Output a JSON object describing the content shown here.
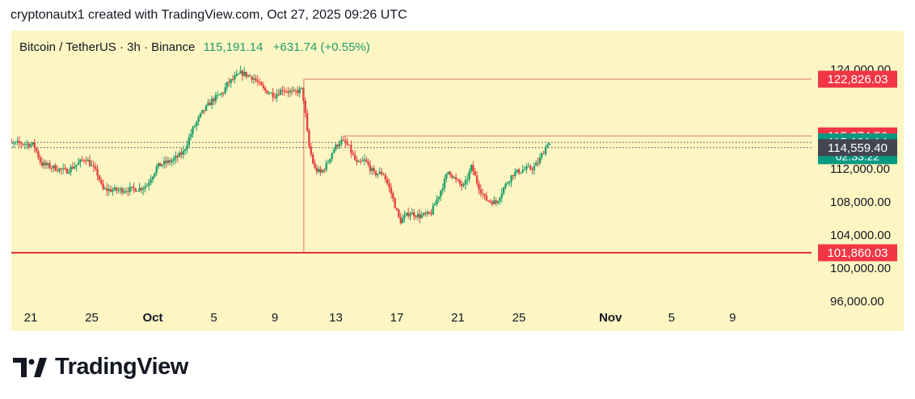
{
  "header": {
    "attribution": "cryptonautx1 created with TradingView.com, Oct 27, 2025 09:26 UTC"
  },
  "legend": {
    "symbol": "Bitcoin / TetherUS · 3h · Binance",
    "last": "115,191.14",
    "change": "+631.74 (+0.55%)"
  },
  "footer": {
    "brand": "TradingView"
  },
  "colors": {
    "bg": "#fdf6c3",
    "up": "#22a06b",
    "down": "#e5433f",
    "line": "#e0716f",
    "support": "#d9302f"
  },
  "chart_data": {
    "type": "candlestick",
    "symbol": "Bitcoin / TetherUS",
    "interval": "3h",
    "exchange": "Binance",
    "y_range": [
      93000,
      126500
    ],
    "y_ticks": [
      {
        "value": 124000,
        "label": "124,000.00"
      },
      {
        "value": 112000,
        "label": "112,000.00"
      },
      {
        "value": 108000,
        "label": "108,000.00"
      },
      {
        "value": 104000,
        "label": "104,000.00"
      },
      {
        "value": 100000,
        "label": "100,000.00"
      },
      {
        "value": 96000,
        "label": "96,000.00"
      }
    ],
    "x_ticks": [
      {
        "day": 21,
        "label": "21",
        "bold": false
      },
      {
        "day": 25,
        "label": "25",
        "bold": false
      },
      {
        "day": 29,
        "label": "Oct",
        "bold": true
      },
      {
        "day": 33,
        "label": "5",
        "bold": false
      },
      {
        "day": 37,
        "label": "9",
        "bold": false
      },
      {
        "day": 41,
        "label": "13",
        "bold": false
      },
      {
        "day": 45,
        "label": "17",
        "bold": false
      },
      {
        "day": 49,
        "label": "21",
        "bold": false
      },
      {
        "day": 53,
        "label": "25",
        "bold": false
      },
      {
        "day": 59,
        "label": "Nov",
        "bold": true
      },
      {
        "day": 63,
        "label": "5",
        "bold": false
      },
      {
        "day": 67,
        "label": "9",
        "bold": false
      }
    ],
    "price_labels": [
      {
        "value": 122826.03,
        "text": "122,826.03",
        "color": "#f23645"
      },
      {
        "value": 115974.56,
        "text": "115,974.56",
        "color": "#f23645"
      },
      {
        "value": 115191.14,
        "text": "115,191.14",
        "sub": "02:33:22",
        "color": "#089981"
      },
      {
        "value": 114559.4,
        "text": "114,559.40",
        "color": "#434651"
      },
      {
        "value": 101860.03,
        "text": "101,860.03",
        "color": "#f23645"
      }
    ],
    "levels": [
      {
        "value": 101860.03,
        "kind": "support"
      },
      {
        "value": 115974.56,
        "kind": "resistance"
      },
      {
        "value": 122826.03,
        "kind": "resistance"
      }
    ],
    "dotted_levels": [
      115191.14,
      114559.4
    ],
    "vertical_marker": {
      "day": 38.9,
      "from": 122826.03,
      "to": 101860.03
    },
    "anchors": [
      [
        19.0,
        114800
      ],
      [
        20.3,
        115100
      ],
      [
        21.2,
        114900
      ],
      [
        21.7,
        112600
      ],
      [
        22.6,
        112100
      ],
      [
        23.3,
        111700
      ],
      [
        24.0,
        112500
      ],
      [
        24.6,
        113300
      ],
      [
        25.4,
        111300
      ],
      [
        25.7,
        109500
      ],
      [
        26.6,
        109400
      ],
      [
        28.1,
        109600
      ],
      [
        28.6,
        110000
      ],
      [
        29.3,
        112300
      ],
      [
        29.8,
        112700
      ],
      [
        30.3,
        113000
      ],
      [
        31.0,
        114000
      ],
      [
        31.6,
        116700
      ],
      [
        32.2,
        118700
      ],
      [
        32.9,
        120300
      ],
      [
        33.6,
        121200
      ],
      [
        33.9,
        122300
      ],
      [
        34.4,
        123000
      ],
      [
        34.8,
        123600
      ],
      [
        35.6,
        123000
      ],
      [
        36.3,
        121500
      ],
      [
        37.0,
        120900
      ],
      [
        37.5,
        121600
      ],
      [
        38.0,
        121300
      ],
      [
        38.2,
        121100
      ],
      [
        38.5,
        121400
      ],
      [
        38.8,
        121600
      ],
      [
        39.0,
        118500
      ],
      [
        39.2,
        115000
      ],
      [
        39.6,
        112000
      ],
      [
        40.0,
        111500
      ],
      [
        40.4,
        112500
      ],
      [
        40.8,
        114200
      ],
      [
        41.3,
        115400
      ],
      [
        41.8,
        114800
      ],
      [
        42.4,
        112500
      ],
      [
        42.9,
        113000
      ],
      [
        43.5,
        111400
      ],
      [
        44.1,
        111500
      ],
      [
        44.6,
        109200
      ],
      [
        45.2,
        105600
      ],
      [
        45.8,
        106700
      ],
      [
        46.5,
        106300
      ],
      [
        47.2,
        106500
      ],
      [
        47.7,
        108600
      ],
      [
        48.4,
        111800
      ],
      [
        48.9,
        110500
      ],
      [
        49.4,
        109800
      ],
      [
        49.9,
        112300
      ],
      [
        50.3,
        110100
      ],
      [
        50.8,
        108300
      ],
      [
        51.5,
        107900
      ],
      [
        52.0,
        109700
      ],
      [
        52.6,
        111400
      ],
      [
        53.3,
        111900
      ],
      [
        53.9,
        112100
      ],
      [
        54.2,
        112600
      ],
      [
        54.6,
        114000
      ],
      [
        54.9,
        115200
      ],
      [
        55.1,
        114900
      ]
    ]
  }
}
